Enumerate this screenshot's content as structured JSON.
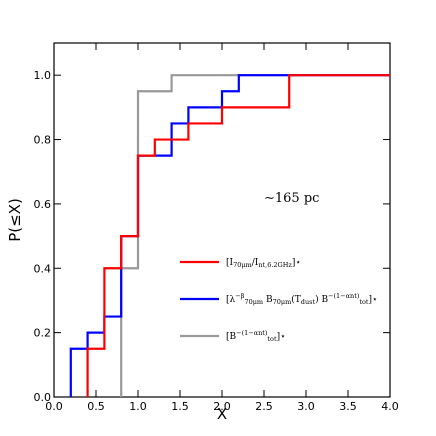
{
  "chart_data": {
    "type": "line",
    "step": true,
    "xlabel": "X",
    "ylabel": "P(≤X)",
    "xlim": [
      0.0,
      4.0
    ],
    "ylim": [
      0.0,
      1.1
    ],
    "xticks": [
      0.0,
      0.5,
      1.0,
      1.5,
      2.0,
      2.5,
      3.0,
      3.5,
      4.0
    ],
    "xtick_labels": [
      "0.0",
      "0.5",
      "1.0",
      "1.5",
      "2.0",
      "2.5",
      "3.0",
      "3.5",
      "4.0"
    ],
    "yticks": [
      0.0,
      0.2,
      0.4,
      0.6,
      0.8,
      1.0
    ],
    "ytick_labels": [
      "0.0",
      "0.2",
      "0.4",
      "0.6",
      "0.8",
      "1.0"
    ],
    "grid": false,
    "legend_position": "center-right",
    "annotation": "∼165 pc",
    "series": [
      {
        "name": "[I70μm/Int,6.2GHz]⋆",
        "color": "#ff0000",
        "x": [
          0.4,
          0.6,
          0.8,
          1.0,
          1.2,
          1.6,
          2.0,
          2.8,
          4.0
        ],
        "y": [
          0.15,
          0.4,
          0.5,
          0.75,
          0.8,
          0.85,
          0.9,
          1.0,
          1.0
        ]
      },
      {
        "name": "[λ70μm^−β B70μm(Tdust) Btot^−(1−αnt)]⋆",
        "color": "#0000ff",
        "x": [
          0.2,
          0.4,
          0.6,
          0.8,
          1.0,
          1.4,
          1.6,
          2.0,
          2.2,
          4.0
        ],
        "y": [
          0.15,
          0.2,
          0.25,
          0.5,
          0.75,
          0.85,
          0.9,
          0.95,
          1.0,
          1.0
        ]
      },
      {
        "name": "[Btot^−(1−αnt)]⋆",
        "color": "#999999",
        "x": [
          0.8,
          1.0,
          1.4,
          4.0
        ],
        "y": [
          0.4,
          0.95,
          1.0,
          1.0
        ]
      }
    ]
  }
}
